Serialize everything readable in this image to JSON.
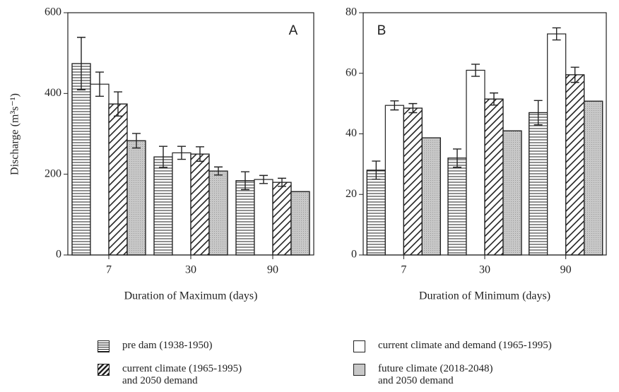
{
  "chart_data": [
    {
      "type": "bar",
      "annotation": "A",
      "x_label": "Duration of Maximum (days)",
      "y_label": "Discharge (m³s⁻¹)",
      "categories": [
        "7",
        "30",
        "90"
      ],
      "ylim": [
        0,
        600
      ],
      "yticks": [
        0,
        200,
        400,
        600
      ],
      "series": [
        {
          "name": "pre dam (1938-1950)",
          "color": "#ffffff",
          "pattern": "horizontal",
          "values": [
            474,
            243,
            184
          ],
          "errors": [
            65,
            26,
            22
          ]
        },
        {
          "name": "current climate and demand (1965-1995)",
          "color": "#ffffff",
          "pattern": "none",
          "values": [
            423,
            253,
            187
          ],
          "errors": [
            30,
            16,
            10
          ]
        },
        {
          "name": "current climate (1965-1995)\nand 2050 demand",
          "color": "#ffffff",
          "pattern": "diagonal",
          "values": [
            374,
            250,
            180
          ],
          "errors": [
            30,
            18,
            10
          ]
        },
        {
          "name": "future climate (2018-2048)\nand 2050 demand",
          "color": "#c8c8c8",
          "pattern": "dots",
          "values": [
            283,
            208,
            157
          ],
          "errors": [
            18,
            10,
            null
          ]
        }
      ]
    },
    {
      "type": "bar",
      "annotation": "B",
      "x_label": "Duration of Minimum (days)",
      "categories": [
        "7",
        "30",
        "90"
      ],
      "ylim": [
        0,
        80
      ],
      "yticks": [
        0,
        20,
        40,
        60,
        80
      ],
      "series": [
        {
          "color": "#ffffff",
          "pattern": "horizontal",
          "values": [
            28,
            32,
            47
          ],
          "errors": [
            3,
            3,
            4
          ]
        },
        {
          "color": "#ffffff",
          "pattern": "none",
          "values": [
            49.4,
            61,
            73
          ],
          "errors": [
            1.5,
            2,
            2
          ]
        },
        {
          "color": "#ffffff",
          "pattern": "diagonal",
          "values": [
            48.5,
            51.5,
            59.5
          ],
          "errors": [
            1.5,
            2,
            2.5
          ]
        },
        {
          "color": "#c8c8c8",
          "pattern": "dots",
          "values": [
            38.7,
            41,
            50.8
          ],
          "errors": [
            null,
            null,
            null
          ]
        }
      ]
    }
  ]
}
